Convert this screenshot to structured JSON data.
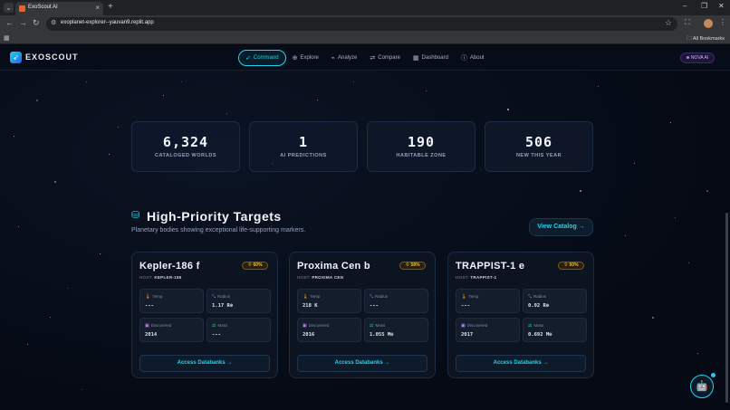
{
  "browser": {
    "tab_title": "ExoScout AI",
    "url": "exoplanet-explorer--yauvan9.replit.app",
    "all_bookmarks": "All Bookmarks"
  },
  "header": {
    "logo": "EXOSCOUT",
    "nav": [
      {
        "label": "Command",
        "icon": "rocket-icon",
        "active": true
      },
      {
        "label": "Explore",
        "icon": "globe-icon",
        "active": false
      },
      {
        "label": "Analyze",
        "icon": "activity-icon",
        "active": false
      },
      {
        "label": "Compare",
        "icon": "compare-icon",
        "active": false
      },
      {
        "label": "Dashboard",
        "icon": "grid-icon",
        "active": false
      },
      {
        "label": "About",
        "icon": "info-icon",
        "active": false
      }
    ],
    "nova": "NOVA AI"
  },
  "stats": [
    {
      "value": "6,324",
      "label": "CATALOGED WORLDS"
    },
    {
      "value": "1",
      "label": "AI PREDICTIONS"
    },
    {
      "value": "190",
      "label": "HABITABLE ZONE"
    },
    {
      "value": "506",
      "label": "NEW THIS YEAR"
    }
  ],
  "section": {
    "title": "High-Priority Targets",
    "subtitle": "Planetary bodies showing exceptional life-supporting markers.",
    "view_catalog": "View Catalog →"
  },
  "labels": {
    "host": "HOST:",
    "temp": "Temp",
    "radius": "Radius",
    "discovered": "Discovered",
    "mass": "Mass",
    "access": "Access Databanks →"
  },
  "targets": [
    {
      "name": "Kepler-186 f",
      "host": "KEPLER-186",
      "score": "60%",
      "temp": "---",
      "radius": "1.17 R⊕",
      "discovered": "2014",
      "mass": "---"
    },
    {
      "name": "Proxima Cen b",
      "host": "PROXIMA CEN",
      "score": "58%",
      "temp": "218 K",
      "radius": "---",
      "discovered": "2016",
      "mass": "1.055 M⊕"
    },
    {
      "name": "TRAPPIST-1 e",
      "host": "TRAPPIST-1",
      "score": "50%",
      "temp": "---",
      "radius": "0.92 R⊕",
      "discovered": "2017",
      "mass": "0.692 M⊕"
    }
  ],
  "colors": {
    "accent": "#22d3ee",
    "badge": "#fbbf24",
    "background": "#050a14"
  }
}
